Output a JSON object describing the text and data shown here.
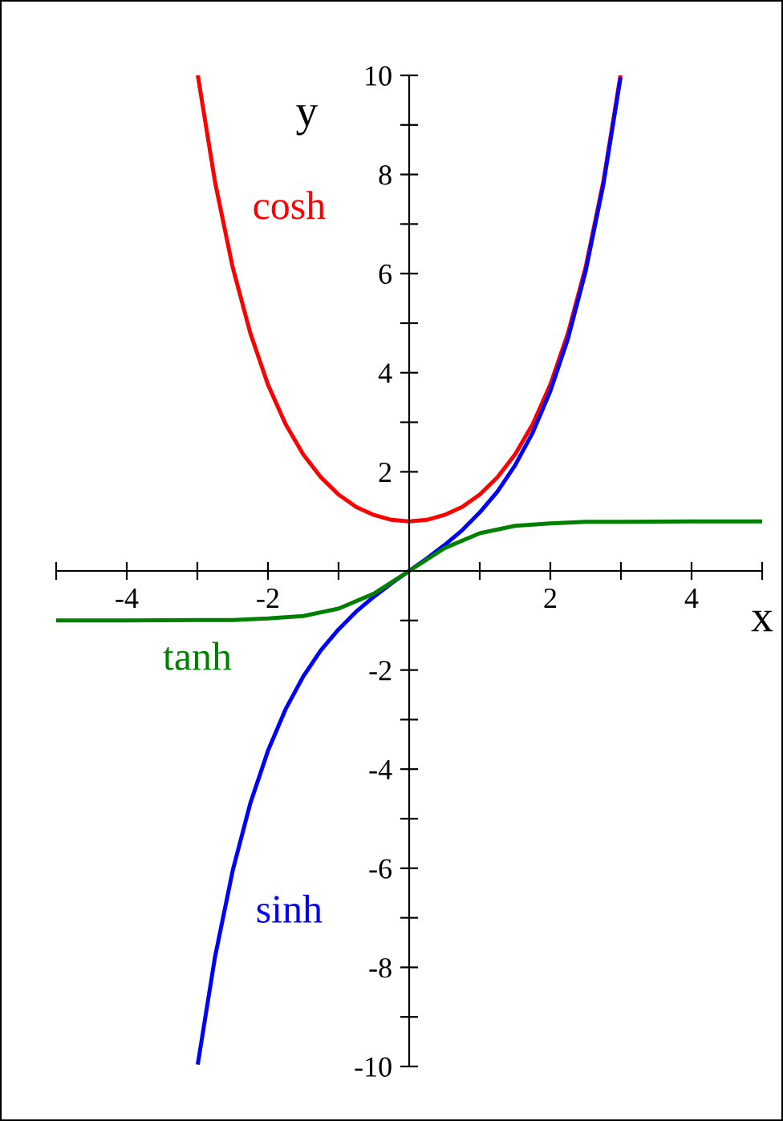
{
  "chart_data": {
    "type": "line",
    "xlabel": "x",
    "ylabel": "y",
    "xlim": [
      -5,
      5
    ],
    "ylim": [
      -10,
      10
    ],
    "xticks": [
      {
        "value": -5,
        "label": null
      },
      -4,
      {
        "value": -3,
        "label": null
      },
      -2,
      {
        "value": -1,
        "label": null
      },
      {
        "value": 1,
        "label": null
      },
      2,
      {
        "value": 3,
        "label": null
      },
      4,
      {
        "value": 5,
        "label": null
      }
    ],
    "yticks": [
      -10,
      {
        "value": -9,
        "label": null
      },
      -8,
      {
        "value": -7,
        "label": null
      },
      -6,
      {
        "value": -5,
        "label": null
      },
      -4,
      {
        "value": -3,
        "label": null
      },
      -2,
      {
        "value": -1,
        "label": null
      },
      {
        "value": 1,
        "label": null
      },
      2,
      {
        "value": 3,
        "label": null
      },
      4,
      {
        "value": 5,
        "label": null
      },
      6,
      {
        "value": 7,
        "label": null
      },
      8,
      {
        "value": 9,
        "label": null
      },
      10
    ],
    "grid": false,
    "legend": false,
    "marker": "none",
    "line_style": "solid",
    "series": [
      {
        "name": "cosh",
        "color": "#ff0000",
        "x": [
          -2.99,
          -2.75,
          -2.5,
          -2.25,
          -2,
          -1.75,
          -1.5,
          -1.25,
          -1,
          -0.75,
          -0.5,
          -0.25,
          0,
          0.25,
          0.5,
          0.75,
          1,
          1.25,
          1.5,
          1.75,
          2,
          2.25,
          2.5,
          2.75,
          2.99
        ],
        "values": [
          9.97,
          7.85,
          6.13,
          4.8,
          3.76,
          2.96,
          2.35,
          1.89,
          1.54,
          1.29,
          1.13,
          1.03,
          1,
          1.03,
          1.13,
          1.29,
          1.54,
          1.89,
          2.35,
          2.96,
          3.76,
          4.8,
          6.13,
          7.85,
          9.97
        ]
      },
      {
        "name": "sinh",
        "color": "#0000ff",
        "x": [
          -2.99,
          -2.75,
          -2.5,
          -2.25,
          -2,
          -1.75,
          -1.5,
          -1.25,
          -1,
          -0.75,
          -0.5,
          -0.25,
          0,
          0.25,
          0.5,
          0.75,
          1,
          1.25,
          1.5,
          1.75,
          2,
          2.25,
          2.5,
          2.75,
          2.99
        ],
        "values": [
          -9.92,
          -7.79,
          -6.05,
          -4.69,
          -3.63,
          -2.79,
          -2.13,
          -1.6,
          -1.18,
          -0.82,
          -0.52,
          -0.25,
          0,
          0.25,
          0.52,
          0.82,
          1.18,
          1.6,
          2.13,
          2.79,
          3.63,
          4.69,
          6.05,
          7.79,
          9.92
        ]
      },
      {
        "name": "tanh",
        "color": "#008000",
        "x": [
          -5,
          -4,
          -3,
          -2.5,
          -2,
          -1.5,
          -1,
          -0.5,
          0,
          0.5,
          1,
          1.5,
          2,
          2.5,
          3,
          4,
          5
        ],
        "values": [
          -1,
          -1,
          -0.99,
          -0.99,
          -0.96,
          -0.91,
          -0.76,
          -0.46,
          0,
          0.46,
          0.76,
          0.91,
          0.96,
          0.99,
          0.99,
          1,
          1
        ]
      }
    ]
  }
}
